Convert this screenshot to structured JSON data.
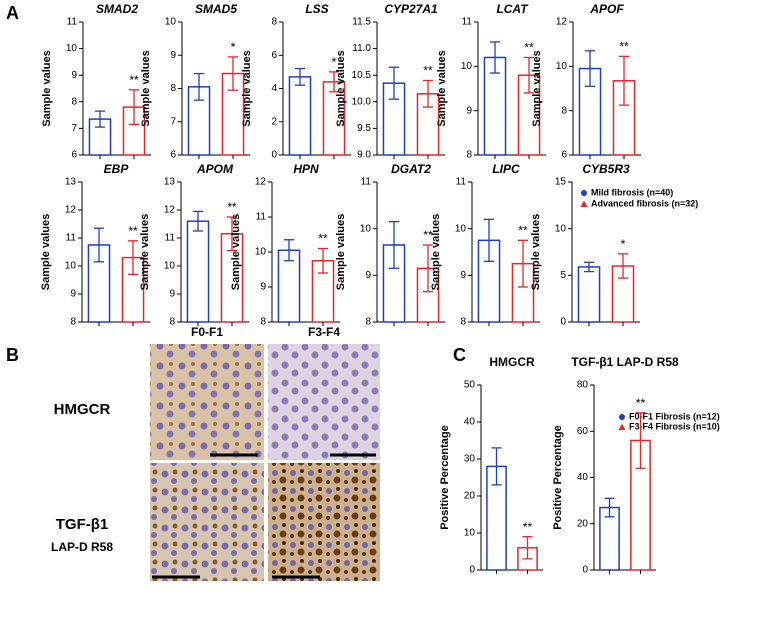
{
  "panel_labels": [
    "A",
    "B",
    "C"
  ],
  "legend_a": [
    {
      "name": "Mild fibrosis (n=40)",
      "color": "#1f3fbf",
      "marker": "circle"
    },
    {
      "name": "Advanced fibrosis (n=32)",
      "color": "#e8262a",
      "marker": "triangle"
    }
  ],
  "legend_c": [
    {
      "name": "F0-F1 Fibrosis (n=12)",
      "color": "#1f3fbf",
      "marker": "circle"
    },
    {
      "name": "F3-F4 Fibrosis (n=10)",
      "color": "#e8262a",
      "marker": "triangle"
    }
  ],
  "ihc": {
    "columns": [
      "F0-F1",
      "F3-F4"
    ],
    "rows": [
      {
        "label": "HMGCR"
      },
      {
        "label": "TGF-β1",
        "sublabel": "LAP-D R58"
      }
    ]
  },
  "chart_data": [
    {
      "type": "bar",
      "title": "SMAD2",
      "ylabel": "Sample values",
      "values": [
        7.35,
        7.8
      ],
      "errors": [
        0.3,
        0.65
      ],
      "colors": [
        "#1f3fbf",
        "#e8262a"
      ],
      "significance": "**",
      "ylim": [
        6,
        11
      ],
      "yticks": [
        6,
        7,
        8,
        9,
        10,
        11
      ]
    },
    {
      "type": "bar",
      "title": "SMAD5",
      "ylabel": "Sample values",
      "values": [
        8.05,
        8.45
      ],
      "errors": [
        0.4,
        0.5
      ],
      "colors": [
        "#1f3fbf",
        "#e8262a"
      ],
      "significance": "*",
      "ylim": [
        6,
        10
      ],
      "yticks": [
        6,
        7,
        8,
        9,
        10
      ]
    },
    {
      "type": "bar",
      "title": "LSS",
      "ylabel": "Sample values",
      "values": [
        4.7,
        4.4
      ],
      "errors": [
        0.5,
        0.6
      ],
      "colors": [
        "#1f3fbf",
        "#e8262a"
      ],
      "significance": "*",
      "ylim": [
        0,
        8
      ],
      "yticks": [
        0,
        2,
        4,
        6,
        8
      ]
    },
    {
      "type": "bar",
      "title": "CYP27A1",
      "ylabel": "Sample values",
      "values": [
        10.35,
        10.15
      ],
      "errors": [
        0.3,
        0.25
      ],
      "colors": [
        "#1f3fbf",
        "#e8262a"
      ],
      "significance": "**",
      "ylim": [
        9,
        11.5
      ],
      "yticks": [
        {
          "value": 9,
          "label": "9.0"
        },
        9.5,
        {
          "value": 10,
          "label": "10.0"
        },
        10.5,
        {
          "value": 11,
          "label": "11.0"
        },
        11.5
      ]
    },
    {
      "type": "bar",
      "title": "LCAT",
      "ylabel": "Sample values",
      "values": [
        10.2,
        9.8
      ],
      "errors": [
        0.35,
        0.4
      ],
      "colors": [
        "#1f3fbf",
        "#e8262a"
      ],
      "significance": "**",
      "ylim": [
        8,
        11
      ],
      "yticks": [
        8,
        9,
        10,
        11
      ]
    },
    {
      "type": "bar",
      "title": "APOF",
      "ylabel": "Sample values",
      "values": [
        9.9,
        9.35
      ],
      "errors": [
        0.8,
        1.1
      ],
      "colors": [
        "#1f3fbf",
        "#e8262a"
      ],
      "significance": "**",
      "ylim": [
        6,
        12
      ],
      "yticks": [
        6,
        8,
        10,
        12
      ]
    },
    {
      "type": "bar",
      "title": "EBP",
      "ylabel": "Sample values",
      "values": [
        10.75,
        10.3
      ],
      "errors": [
        0.6,
        0.6
      ],
      "colors": [
        "#1f3fbf",
        "#e8262a"
      ],
      "significance": "**",
      "ylim": [
        8,
        13
      ],
      "yticks": [
        8,
        9,
        10,
        11,
        12,
        13
      ]
    },
    {
      "type": "bar",
      "title": "APOM",
      "ylabel": "Sample values",
      "values": [
        11.6,
        11.15
      ],
      "errors": [
        0.35,
        0.6
      ],
      "colors": [
        "#1f3fbf",
        "#e8262a"
      ],
      "significance": "**",
      "ylim": [
        8,
        13
      ],
      "yticks": [
        8,
        9,
        10,
        11,
        12,
        13
      ]
    },
    {
      "type": "bar",
      "title": "HPN",
      "ylabel": "Sample values",
      "values": [
        10.05,
        9.75
      ],
      "errors": [
        0.3,
        0.35
      ],
      "colors": [
        "#1f3fbf",
        "#e8262a"
      ],
      "significance": "**",
      "ylim": [
        8,
        12
      ],
      "yticks": [
        8,
        9,
        10,
        11,
        12
      ]
    },
    {
      "type": "bar",
      "title": "DGAT2",
      "ylabel": "Sample values",
      "values": [
        9.65,
        9.15
      ],
      "errors": [
        0.5,
        0.5
      ],
      "colors": [
        "#1f3fbf",
        "#e8262a"
      ],
      "significance": "**",
      "ylim": [
        8,
        11
      ],
      "yticks": [
        8,
        9,
        10,
        11
      ]
    },
    {
      "type": "bar",
      "title": "LIPC",
      "ylabel": "Sample values",
      "values": [
        9.75,
        9.25
      ],
      "errors": [
        0.45,
        0.5
      ],
      "colors": [
        "#1f3fbf",
        "#e8262a"
      ],
      "significance": "**",
      "ylim": [
        8,
        11
      ],
      "yticks": [
        8,
        9,
        10,
        11
      ]
    },
    {
      "type": "bar",
      "title": "CYB5R3",
      "ylabel": "Sample values",
      "values": [
        5.9,
        6.0
      ],
      "errors": [
        0.5,
        1.3
      ],
      "colors": [
        "#1f3fbf",
        "#e8262a"
      ],
      "significance": "*",
      "ylim": [
        0,
        15
      ],
      "yticks": [
        0,
        5,
        10,
        15
      ]
    },
    {
      "type": "bar",
      "title": "HMGCR",
      "ylabel": "Positive Percentage",
      "values": [
        28,
        6
      ],
      "errors": [
        5,
        3
      ],
      "colors": [
        "#1f3fbf",
        "#e8262a"
      ],
      "significance": "**",
      "ylim": [
        0,
        50
      ],
      "yticks": [
        0,
        10,
        20,
        30,
        40,
        50
      ]
    },
    {
      "type": "bar",
      "title": "TGF-β1 LAP-D R58",
      "ylabel": "Positive Percentage",
      "values": [
        27,
        56
      ],
      "errors": [
        4,
        12
      ],
      "colors": [
        "#1f3fbf",
        "#e8262a"
      ],
      "significance": "**",
      "ylim": [
        0,
        80
      ],
      "yticks": [
        0,
        20,
        40,
        60,
        80
      ]
    }
  ]
}
